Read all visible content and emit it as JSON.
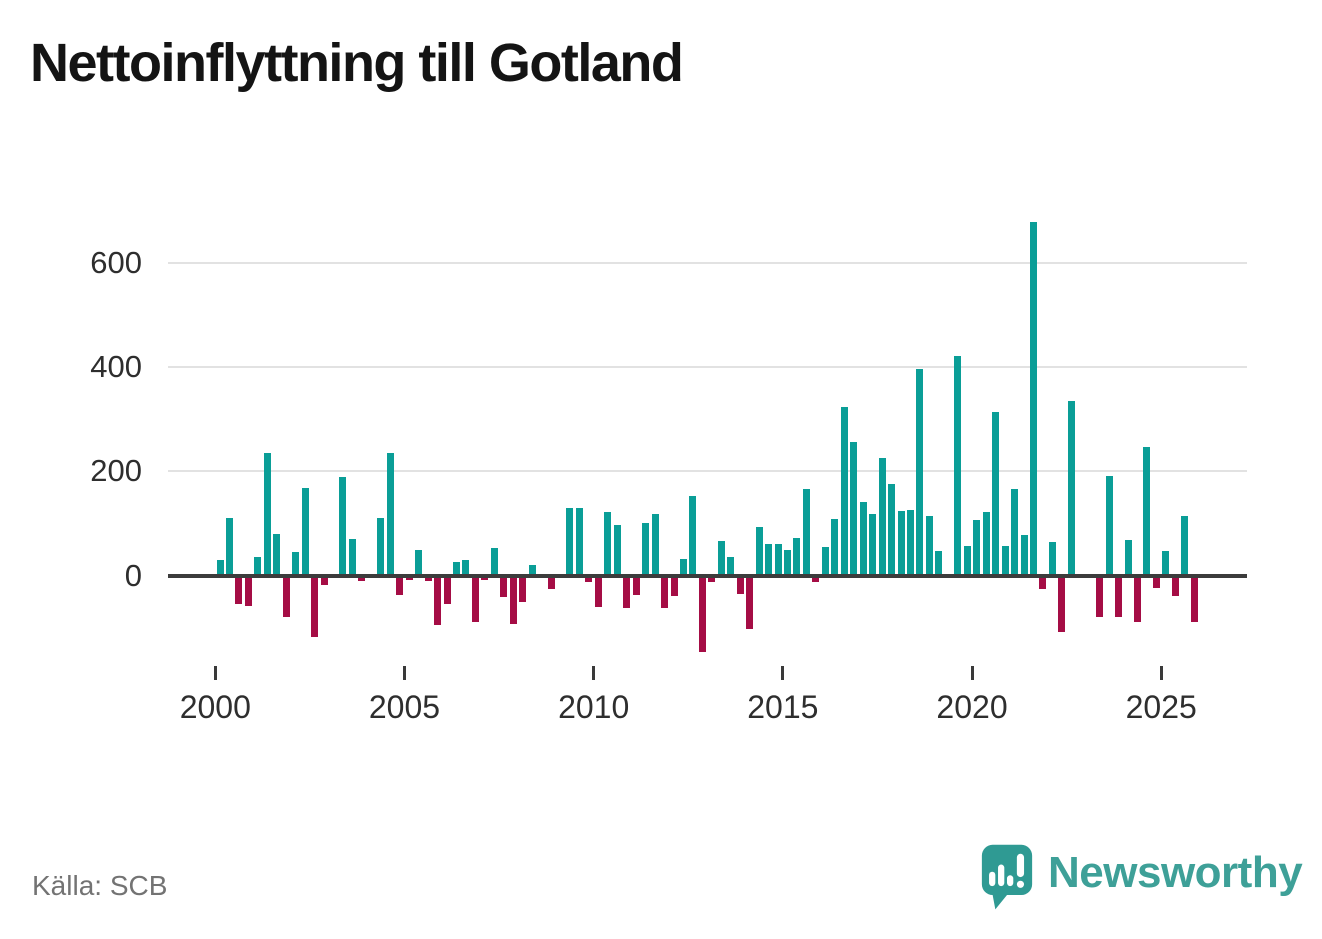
{
  "title": "Nettoinflyttning till Gotland",
  "source": "Källa: SCB",
  "brand": {
    "name": "Newsworthy",
    "color": "#3ea098"
  },
  "chart_data": {
    "type": "bar",
    "title": "Nettoinflyttning till Gotland",
    "xlabel": "",
    "ylabel": "",
    "x_tick_labels": [
      "2000",
      "2005",
      "2010",
      "2015",
      "2020",
      "2025"
    ],
    "y_tick_labels": [
      "0",
      "200",
      "400",
      "600"
    ],
    "y_ticks": [
      0,
      200,
      400,
      600
    ],
    "ylim": [
      -160,
      700
    ],
    "grid": "horizontal",
    "legend": "none",
    "colors": {
      "positive": "#0a9e97",
      "negative": "#a50d45",
      "axis": "#3c3c3c",
      "gridline": "#e2e2e2"
    },
    "categories": [
      "2000Q1",
      "2000Q2",
      "2000Q3",
      "2000Q4",
      "2001Q1",
      "2001Q2",
      "2001Q3",
      "2001Q4",
      "2002Q1",
      "2002Q2",
      "2002Q3",
      "2002Q4",
      "2003Q1",
      "2003Q2",
      "2003Q3",
      "2003Q4",
      "2004Q1",
      "2004Q2",
      "2004Q3",
      "2004Q4",
      "2005Q1",
      "2005Q2",
      "2005Q3",
      "2005Q4",
      "2006Q1",
      "2006Q2",
      "2006Q3",
      "2006Q4",
      "2007Q1",
      "2007Q2",
      "2007Q3",
      "2007Q4",
      "2008Q1",
      "2008Q2",
      "2008Q3",
      "2008Q4",
      "2009Q1",
      "2009Q2",
      "2009Q3",
      "2009Q4",
      "2010Q1",
      "2010Q2",
      "2010Q3",
      "2010Q4",
      "2011Q1",
      "2011Q2",
      "2011Q3",
      "2011Q4",
      "2012Q1",
      "2012Q2",
      "2012Q3",
      "2012Q4",
      "2013Q1",
      "2013Q2",
      "2013Q3",
      "2013Q4",
      "2014Q1",
      "2014Q2",
      "2014Q3",
      "2014Q4",
      "2015Q1",
      "2015Q2",
      "2015Q3",
      "2015Q4",
      "2016Q1",
      "2016Q2",
      "2016Q3",
      "2016Q4",
      "2017Q1",
      "2017Q2",
      "2017Q3",
      "2017Q4",
      "2018Q1",
      "2018Q2",
      "2018Q3",
      "2018Q4",
      "2019Q1",
      "2019Q2",
      "2019Q3",
      "2019Q4",
      "2020Q1",
      "2020Q2",
      "2020Q3",
      "2020Q4",
      "2021Q1",
      "2021Q2",
      "2021Q3",
      "2021Q4",
      "2022Q1",
      "2022Q2",
      "2022Q3",
      "2022Q4",
      "2023Q1",
      "2023Q2",
      "2023Q3",
      "2023Q4",
      "2024Q1",
      "2024Q2",
      "2024Q3",
      "2024Q4",
      "2025Q1",
      "2025Q2",
      "2025Q3",
      "2025Q4"
    ],
    "values": [
      30,
      110,
      -55,
      -58,
      36,
      234,
      79,
      -80,
      45,
      168,
      -118,
      -19,
      0,
      188,
      70,
      -11,
      0,
      110,
      234,
      -38,
      -8,
      49,
      -11,
      -95,
      -55,
      25,
      30,
      -90,
      -8,
      53,
      -42,
      -93,
      -50,
      20,
      0,
      -25,
      0,
      129,
      129,
      -13,
      -60,
      122,
      96,
      -63,
      -37,
      101,
      117,
      -63,
      -40,
      31,
      153,
      -146,
      -12,
      66,
      35,
      -35,
      -103,
      93,
      61,
      61,
      48,
      71,
      165,
      -13,
      55,
      109,
      323,
      256,
      140,
      117,
      226,
      175,
      124,
      126,
      396,
      115,
      47,
      0,
      420,
      56,
      107,
      122,
      313,
      56,
      165,
      78,
      678,
      -25,
      65,
      -108,
      335,
      0,
      0,
      -80,
      191,
      -80,
      69,
      -89,
      246,
      -24,
      47,
      -40,
      114,
      -90
    ],
    "x_tick_years": [
      2000,
      2005,
      2010,
      2015,
      2020,
      2025
    ]
  }
}
